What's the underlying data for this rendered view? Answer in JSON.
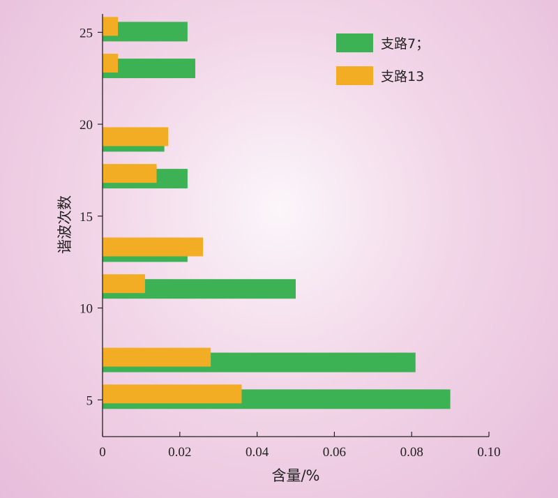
{
  "chart_data": {
    "type": "bar",
    "orientation": "horizontal",
    "title": "",
    "xlabel": "含量/%",
    "ylabel": "谐波次数",
    "xlim": [
      0,
      0.1
    ],
    "ylim": [
      3,
      26
    ],
    "x_ticks": [
      "0",
      "0.02",
      "0.04",
      "0.06",
      "0.08",
      "0.10"
    ],
    "y_ticks": [
      "5",
      "10",
      "15",
      "20",
      "25"
    ],
    "grid": false,
    "legend_position": "top-right",
    "categories": [
      5,
      7,
      11,
      13,
      17,
      19,
      23,
      25
    ],
    "series": [
      {
        "name": "支路7；",
        "color": "#3db254",
        "values": [
          0.09,
          0.081,
          0.05,
          0.022,
          0.022,
          0.016,
          0.024,
          0.022
        ]
      },
      {
        "name": "支路13",
        "color": "#f2ad24",
        "values": [
          0.036,
          0.028,
          0.011,
          0.026,
          0.014,
          0.017,
          0.004,
          0.004
        ]
      }
    ]
  }
}
